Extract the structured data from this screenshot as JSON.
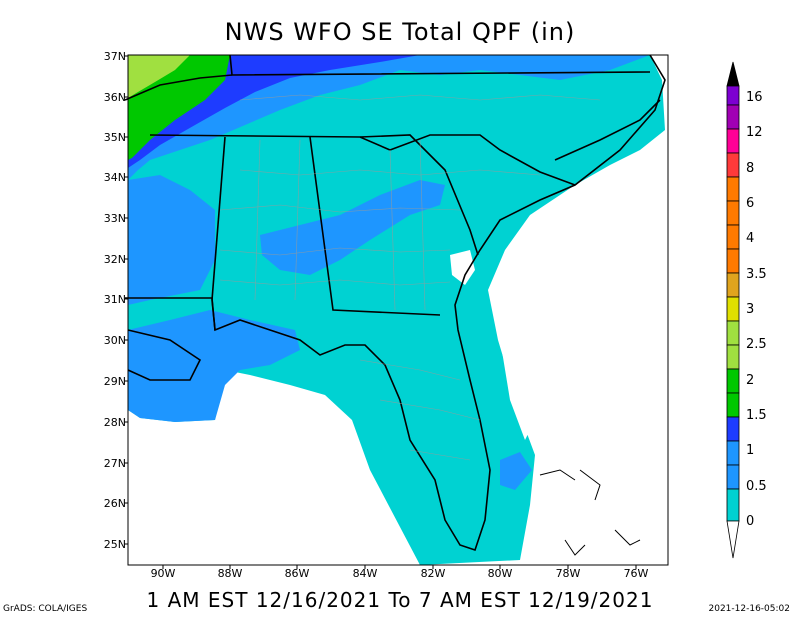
{
  "title": "NWS WFO SE Total QPF (in)",
  "latitudes": [
    "37N",
    "36N",
    "35N",
    "34N",
    "33N",
    "32N",
    "31N",
    "30N",
    "29N",
    "28N",
    "27N",
    "26N",
    "25N"
  ],
  "longitudes": [
    "90W",
    "88W",
    "86W",
    "84W",
    "82W",
    "80W",
    "78W",
    "76W"
  ],
  "legend": {
    "levels": [
      "16",
      "12",
      "8",
      "6",
      "4",
      "3.5",
      "3",
      "2.5",
      "2",
      "1.5",
      "1",
      "0.5",
      "0"
    ],
    "colors": [
      "#000000",
      "#7d00d2",
      "#a100b4",
      "#ff0096",
      "#ff3a3a",
      "#ff7a00",
      "#e0a41e",
      "#e0e000",
      "#a0e040",
      "#00c800",
      "#1e3cff",
      "#1e96ff",
      "#00d2d2",
      "#ffffff"
    ]
  },
  "time_range": "1 AM EST 12/16/2021 To 7 AM EST 12/19/2021",
  "credit": "GrADS: COLA/IGES",
  "timestamp": "2021-12-16-05:02"
}
